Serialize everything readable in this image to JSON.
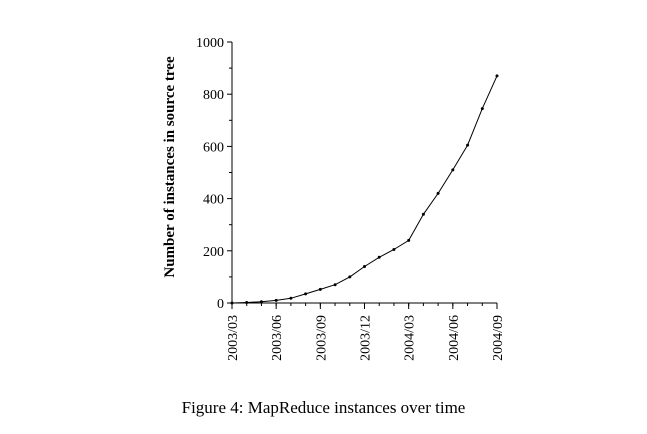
{
  "chart_data": {
    "type": "line",
    "ylabel": "Number of instances in source tree",
    "xlabel": "",
    "x_ticks": [
      "2003/03",
      "2003/06",
      "2003/09",
      "2003/12",
      "2004/03",
      "2004/06",
      "2004/09"
    ],
    "y_ticks": [
      0,
      200,
      400,
      600,
      800,
      1000
    ],
    "ylim": [
      0,
      1000
    ],
    "xlim": [
      "2003/03",
      "2004/09"
    ],
    "grid": false,
    "series": [
      {
        "x": [
          "2003/03",
          "2003/04",
          "2003/05",
          "2003/06",
          "2003/07",
          "2003/08",
          "2003/09",
          "2003/10",
          "2003/11",
          "2003/12",
          "2004/01",
          "2004/02",
          "2004/03",
          "2004/04",
          "2004/05",
          "2004/06",
          "2004/07",
          "2004/08",
          "2004/09"
        ],
        "values": [
          0,
          2,
          5,
          10,
          18,
          35,
          52,
          70,
          100,
          140,
          175,
          205,
          240,
          340,
          420,
          510,
          605,
          745,
          870
        ]
      }
    ]
  },
  "caption": "Figure 4: MapReduce instances over time"
}
